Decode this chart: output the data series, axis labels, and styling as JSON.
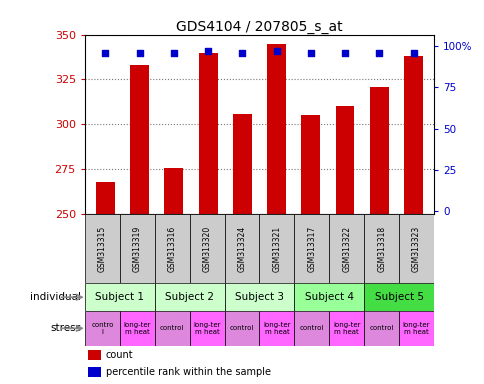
{
  "title": "GDS4104 / 207805_s_at",
  "samples": [
    "GSM313315",
    "GSM313319",
    "GSM313316",
    "GSM313320",
    "GSM313324",
    "GSM313321",
    "GSM313317",
    "GSM313322",
    "GSM313318",
    "GSM313323"
  ],
  "bar_values": [
    268,
    333,
    276,
    340,
    306,
    345,
    305,
    310,
    321,
    338
  ],
  "percentile_values": [
    96,
    96,
    96,
    97,
    96,
    97,
    96,
    96,
    96,
    96
  ],
  "ymin": 250,
  "ymax": 350,
  "yticks": [
    250,
    275,
    300,
    325,
    350
  ],
  "right_yticks": [
    0,
    25,
    50,
    75,
    100
  ],
  "bar_color": "#cc0000",
  "dot_color": "#0000cc",
  "subjects": [
    {
      "label": "Subject 1",
      "cols": [
        0,
        1
      ],
      "color": "#ccffcc"
    },
    {
      "label": "Subject 2",
      "cols": [
        2,
        3
      ],
      "color": "#ccffcc"
    },
    {
      "label": "Subject 3",
      "cols": [
        4,
        5
      ],
      "color": "#ccffcc"
    },
    {
      "label": "Subject 4",
      "cols": [
        6,
        7
      ],
      "color": "#99ff99"
    },
    {
      "label": "Subject 5",
      "cols": [
        8,
        9
      ],
      "color": "#44dd44"
    }
  ],
  "stress_labels": [
    "contro\nl",
    "long-ter\nm heat",
    "control",
    "long-ter\nm heat",
    "control",
    "long-ter\nm heat",
    "control",
    "long-ter\nm heat",
    "control",
    "long-ter\nm heat"
  ],
  "stress_colors": [
    "#dd88dd",
    "#ff66ff",
    "#dd88dd",
    "#ff66ff",
    "#dd88dd",
    "#ff66ff",
    "#dd88dd",
    "#ff66ff",
    "#dd88dd",
    "#ff66ff"
  ],
  "gsm_bg": "#cccccc",
  "xlabel_color": "#cc0000",
  "right_axis_color": "#0000cc",
  "grid_color": "#777777",
  "left_labels": [
    "individual",
    "stress"
  ],
  "legend_items": [
    {
      "color": "#cc0000",
      "label": "count"
    },
    {
      "color": "#0000cc",
      "label": "percentile rank within the sample"
    }
  ]
}
